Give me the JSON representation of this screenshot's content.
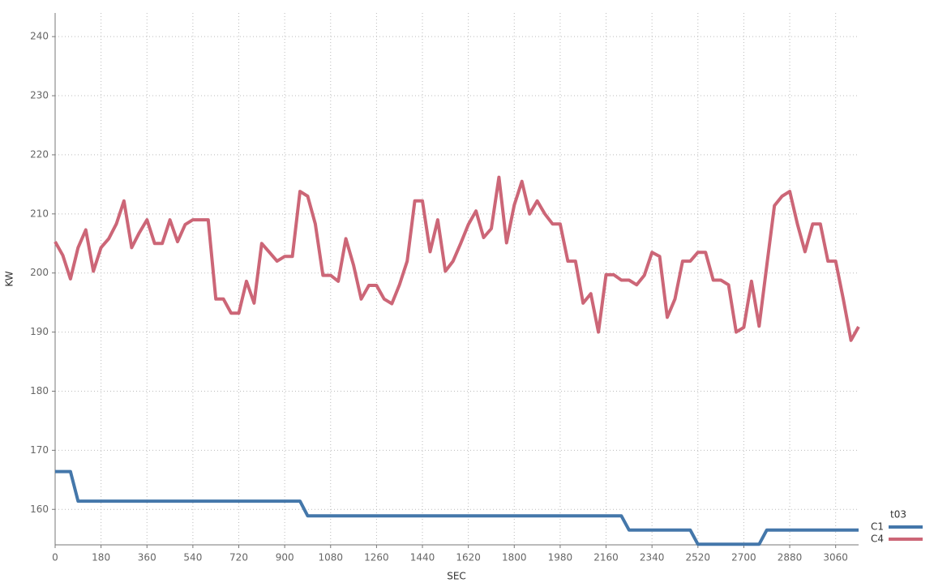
{
  "chart_data": {
    "type": "line",
    "x_label": "SEC",
    "y_label": "KW",
    "legend_title": "t03",
    "legend": "right",
    "grid": true,
    "xlim": [
      0,
      3150
    ],
    "ylim": [
      154,
      244
    ],
    "xticks": [
      0,
      180,
      360,
      540,
      720,
      900,
      1080,
      1260,
      1440,
      1620,
      1800,
      1980,
      2160,
      2340,
      2520,
      2700,
      2880,
      3060
    ],
    "yticks": [
      160,
      170,
      180,
      190,
      200,
      210,
      220,
      230,
      240
    ],
    "x": [
      0,
      30,
      60,
      90,
      120,
      150,
      180,
      210,
      240,
      270,
      300,
      330,
      360,
      390,
      420,
      450,
      480,
      510,
      540,
      570,
      600,
      630,
      660,
      690,
      720,
      750,
      780,
      810,
      840,
      870,
      900,
      930,
      960,
      990,
      1020,
      1050,
      1080,
      1110,
      1140,
      1170,
      1200,
      1230,
      1260,
      1290,
      1320,
      1350,
      1380,
      1410,
      1440,
      1470,
      1500,
      1530,
      1560,
      1590,
      1620,
      1650,
      1680,
      1710,
      1740,
      1770,
      1800,
      1830,
      1860,
      1890,
      1920,
      1950,
      1980,
      2010,
      2040,
      2070,
      2100,
      2130,
      2160,
      2190,
      2220,
      2250,
      2280,
      2310,
      2340,
      2370,
      2400,
      2430,
      2460,
      2490,
      2520,
      2550,
      2580,
      2610,
      2640,
      2670,
      2700,
      2730,
      2760,
      2790,
      2820,
      2850,
      2880,
      2910,
      2940,
      2970,
      3000,
      3030,
      3060,
      3090,
      3120,
      3150
    ],
    "series": [
      {
        "name": "C1",
        "color": "#4477aa",
        "values": [
          166.4,
          166.4,
          166.4,
          161.4,
          161.4,
          161.4,
          161.4,
          161.4,
          161.4,
          161.4,
          161.4,
          161.4,
          161.4,
          161.4,
          161.4,
          161.4,
          161.4,
          161.4,
          161.4,
          161.4,
          161.4,
          161.4,
          161.4,
          161.4,
          161.4,
          161.4,
          161.4,
          161.4,
          161.4,
          161.4,
          161.4,
          161.4,
          161.4,
          158.9,
          158.9,
          158.9,
          158.9,
          158.9,
          158.9,
          158.9,
          158.9,
          158.9,
          158.9,
          158.9,
          158.9,
          158.9,
          158.9,
          158.9,
          158.9,
          158.9,
          158.9,
          158.9,
          158.9,
          158.9,
          158.9,
          158.9,
          158.9,
          158.9,
          158.9,
          158.9,
          158.9,
          158.9,
          158.9,
          158.9,
          158.9,
          158.9,
          158.9,
          158.9,
          158.9,
          158.9,
          158.9,
          158.9,
          158.9,
          158.9,
          158.9,
          156.5,
          156.5,
          156.5,
          156.5,
          156.5,
          156.5,
          156.5,
          156.5,
          156.5,
          154.1,
          154.1,
          154.1,
          154.1,
          154.1,
          154.1,
          154.1,
          154.1,
          154.1,
          156.5,
          156.5,
          156.5,
          156.5,
          156.5,
          156.5,
          156.5,
          156.5,
          156.5,
          156.5,
          156.5,
          156.5,
          156.5
        ]
      },
      {
        "name": "C4",
        "color": "#cc6677",
        "values": [
          205.3,
          203,
          199,
          204.3,
          207.3,
          200.3,
          204.3,
          205.8,
          208.3,
          212.2,
          204.3,
          206.8,
          209,
          205,
          205,
          209,
          205.3,
          208.2,
          209,
          209,
          209,
          195.6,
          195.6,
          193.2,
          193.2,
          198.6,
          194.9,
          205,
          203.5,
          202,
          202.8,
          202.8,
          213.8,
          213,
          208.3,
          199.6,
          199.6,
          198.6,
          205.8,
          201.3,
          195.6,
          197.9,
          197.9,
          195.6,
          194.8,
          198,
          202,
          212.2,
          212.2,
          203.6,
          209,
          200.3,
          202,
          205,
          208.2,
          210.5,
          206,
          207.5,
          216.2,
          205.1,
          211.5,
          215.5,
          210,
          212.2,
          210,
          208.3,
          208.3,
          202,
          202,
          194.9,
          196.5,
          190,
          199.7,
          199.7,
          198.8,
          198.8,
          198,
          199.6,
          203.5,
          202.8,
          192.5,
          195.6,
          202,
          202,
          203.5,
          203.5,
          198.8,
          198.8,
          198,
          190,
          190.8,
          198.6,
          191,
          201.2,
          211.4,
          213,
          213.8,
          208.3,
          203.6,
          208.3,
          208.3,
          202,
          202,
          195.6,
          188.6,
          190.9
        ]
      }
    ]
  }
}
